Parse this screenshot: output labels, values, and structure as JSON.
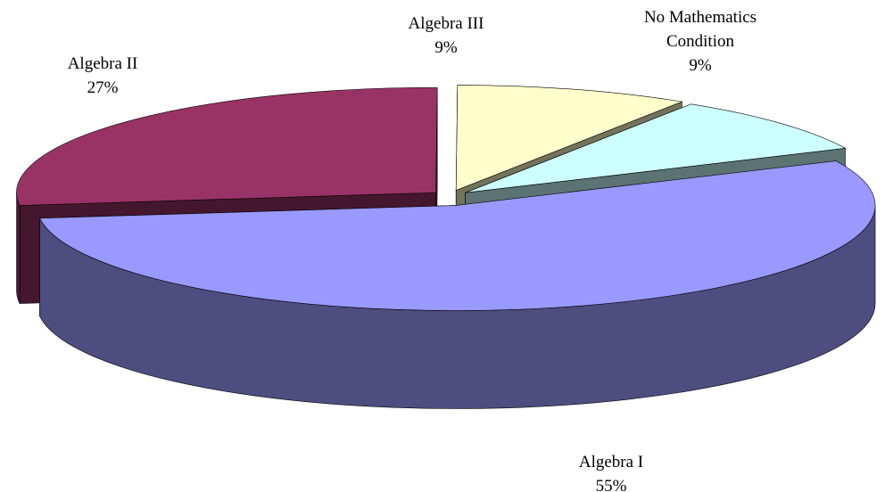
{
  "chart_data": {
    "type": "pie3d",
    "categories": [
      "Algebra I",
      "Algebra II",
      "Algebra III",
      "No Mathematics Condition"
    ],
    "values": [
      55,
      27,
      9,
      9
    ],
    "value_labels": [
      "55%",
      "27%",
      "9%",
      "9%"
    ],
    "colors": [
      "#9999ff",
      "#993366",
      "#ffffcc",
      "#ccffff"
    ]
  }
}
